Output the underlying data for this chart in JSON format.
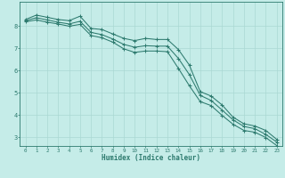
{
  "xlabel": "Humidex (Indice chaleur)",
  "bg_color": "#c5ece8",
  "grid_color": "#aad8d3",
  "line_color": "#2d7a6e",
  "xlim": [
    -0.5,
    23.5
  ],
  "ylim": [
    2.6,
    9.1
  ],
  "xticks": [
    0,
    1,
    2,
    3,
    4,
    5,
    6,
    7,
    8,
    9,
    10,
    11,
    12,
    13,
    14,
    15,
    16,
    17,
    18,
    19,
    20,
    21,
    22,
    23
  ],
  "yticks": [
    3,
    4,
    5,
    6,
    7,
    8
  ],
  "series1_x": [
    0,
    1,
    2,
    3,
    4,
    5,
    6,
    7,
    8,
    9,
    10,
    11,
    12,
    13,
    14,
    15,
    16,
    17,
    18,
    19,
    20,
    21,
    22,
    23
  ],
  "series1_y": [
    8.3,
    8.5,
    8.4,
    8.3,
    8.25,
    8.45,
    7.9,
    7.85,
    7.65,
    7.45,
    7.35,
    7.45,
    7.4,
    7.4,
    6.95,
    6.25,
    5.05,
    4.85,
    4.45,
    3.9,
    3.6,
    3.5,
    3.3,
    2.9
  ],
  "series2_x": [
    0,
    1,
    2,
    3,
    4,
    5,
    6,
    7,
    8,
    9,
    10,
    11,
    12,
    13,
    14,
    15,
    16,
    17,
    18,
    19,
    20,
    21,
    22,
    23
  ],
  "series2_y": [
    8.25,
    8.38,
    8.28,
    8.18,
    8.1,
    8.22,
    7.72,
    7.62,
    7.42,
    7.18,
    7.05,
    7.12,
    7.1,
    7.1,
    6.55,
    5.82,
    4.88,
    4.65,
    4.22,
    3.78,
    3.48,
    3.38,
    3.12,
    2.78
  ],
  "series3_x": [
    0,
    1,
    2,
    3,
    4,
    5,
    6,
    7,
    8,
    9,
    10,
    11,
    12,
    13,
    14,
    15,
    16,
    17,
    18,
    19,
    20,
    21,
    22,
    23
  ],
  "series3_y": [
    8.2,
    8.28,
    8.18,
    8.1,
    8.0,
    8.08,
    7.58,
    7.48,
    7.28,
    6.98,
    6.82,
    6.88,
    6.88,
    6.85,
    6.1,
    5.32,
    4.6,
    4.42,
    3.98,
    3.58,
    3.3,
    3.22,
    2.98,
    2.62
  ]
}
